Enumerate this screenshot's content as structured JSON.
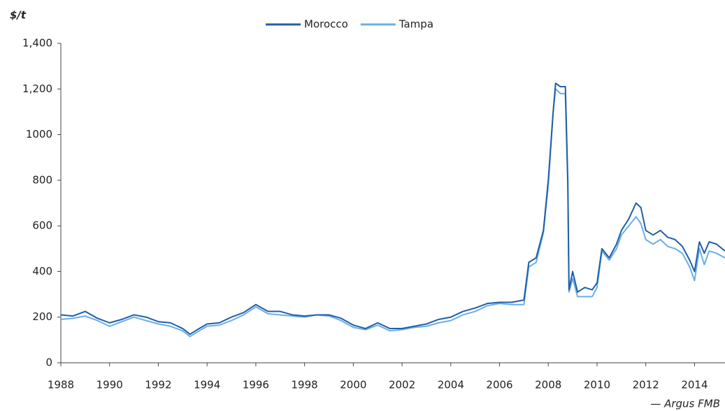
{
  "chart_data": {
    "type": "line",
    "y_label": "$/t",
    "source": "— Argus FMB",
    "x": [
      1988,
      1988.5,
      1989,
      1989.5,
      1990,
      1990.5,
      1991,
      1991.5,
      1992,
      1992.5,
      1993,
      1993.3,
      1993.6,
      1994,
      1994.5,
      1995,
      1995.5,
      1996,
      1996.5,
      1997,
      1997.5,
      1998,
      1998.5,
      1999,
      1999.5,
      2000,
      2000.5,
      2001,
      2001.5,
      2002,
      2002.5,
      2003,
      2003.5,
      2004,
      2004.5,
      2005,
      2005.5,
      2006,
      2006.5,
      2007,
      2007.2,
      2007.5,
      2007.8,
      2008,
      2008.2,
      2008.3,
      2008.5,
      2008.7,
      2008.8,
      2008.85,
      2009,
      2009.2,
      2009.5,
      2009.8,
      2010,
      2010.2,
      2010.5,
      2010.8,
      2011,
      2011.3,
      2011.6,
      2011.8,
      2012,
      2012.3,
      2012.6,
      2012.9,
      2013.2,
      2013.5,
      2013.8,
      2014,
      2014.2,
      2014.4,
      2014.6,
      2014.9,
      2015.25
    ],
    "series": [
      {
        "name": "Morocco",
        "color": "#1f5fa8",
        "values": [
          210,
          205,
          225,
          195,
          175,
          190,
          210,
          200,
          180,
          175,
          150,
          125,
          145,
          170,
          175,
          200,
          220,
          255,
          225,
          225,
          210,
          205,
          210,
          210,
          195,
          165,
          150,
          175,
          150,
          150,
          160,
          170,
          190,
          200,
          225,
          240,
          260,
          265,
          265,
          275,
          440,
          460,
          580,
          800,
          1100,
          1225,
          1210,
          1210,
          800,
          320,
          400,
          310,
          330,
          320,
          350,
          500,
          460,
          520,
          580,
          630,
          700,
          680,
          580,
          560,
          580,
          550,
          540,
          510,
          450,
          400,
          530,
          480,
          530,
          520,
          490
        ]
      },
      {
        "name": "Tampa",
        "color": "#6aaee6",
        "values": [
          190,
          195,
          205,
          185,
          160,
          180,
          200,
          185,
          170,
          160,
          140,
          115,
          135,
          160,
          165,
          185,
          210,
          245,
          215,
          210,
          205,
          200,
          210,
          205,
          185,
          155,
          145,
          165,
          140,
          145,
          155,
          160,
          175,
          185,
          210,
          225,
          250,
          260,
          255,
          255,
          420,
          440,
          570,
          780,
          1100,
          1200,
          1180,
          1180,
          780,
          310,
          370,
          290,
          290,
          290,
          330,
          490,
          450,
          500,
          560,
          600,
          640,
          610,
          540,
          520,
          540,
          510,
          500,
          480,
          420,
          360,
          500,
          430,
          490,
          480,
          460
        ]
      }
    ],
    "xlim": [
      1988,
      2015.25
    ],
    "xticks": [
      1988,
      1990,
      1992,
      1994,
      1996,
      1998,
      2000,
      2002,
      2004,
      2006,
      2008,
      2010,
      2012,
      2014
    ],
    "ylim": [
      0,
      1400
    ],
    "yticks": [
      0,
      200,
      400,
      600,
      800,
      1000,
      {
        "value": 1200,
        "label": "1,200"
      },
      {
        "value": 1400,
        "label": "1,400"
      }
    ],
    "legend": "top",
    "grid": false
  }
}
